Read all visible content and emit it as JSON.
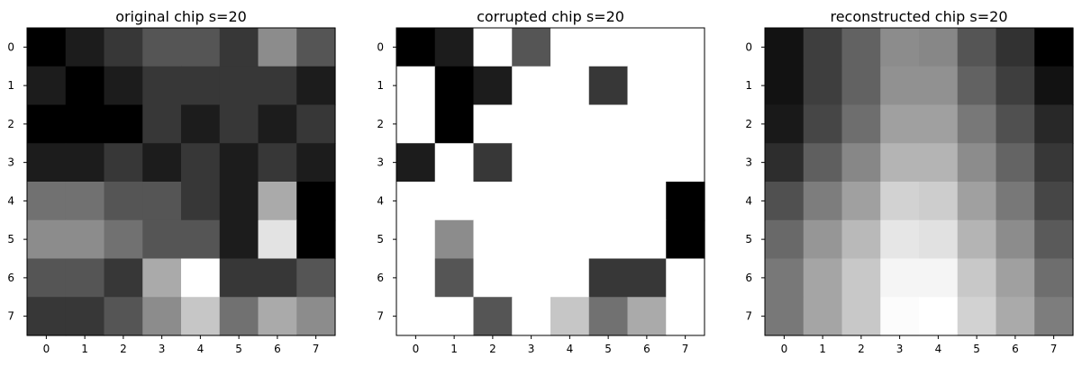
{
  "chart_data": [
    {
      "type": "heatmap",
      "title": "original chip s=20",
      "colormap": "gray",
      "vmin": 0,
      "vmax": 255,
      "x_ticks": [
        "0",
        "1",
        "2",
        "3",
        "4",
        "5",
        "6",
        "7"
      ],
      "y_ticks": [
        "0",
        "1",
        "2",
        "3",
        "4",
        "5",
        "6",
        "7"
      ],
      "values": [
        [
          0,
          28,
          55,
          85,
          85,
          55,
          140,
          85
        ],
        [
          28,
          0,
          28,
          55,
          55,
          55,
          55,
          28
        ],
        [
          0,
          0,
          0,
          55,
          28,
          55,
          28,
          55
        ],
        [
          28,
          28,
          55,
          28,
          55,
          28,
          55,
          28
        ],
        [
          113,
          113,
          85,
          85,
          55,
          28,
          170,
          0
        ],
        [
          140,
          140,
          113,
          85,
          85,
          28,
          227,
          0
        ],
        [
          85,
          85,
          55,
          170,
          255,
          55,
          55,
          85
        ],
        [
          55,
          55,
          85,
          140,
          198,
          113,
          170,
          140
        ]
      ]
    },
    {
      "type": "heatmap",
      "title": "corrupted chip s=20",
      "colormap": "gray",
      "vmin": 0,
      "vmax": 255,
      "x_ticks": [
        "0",
        "1",
        "2",
        "3",
        "4",
        "5",
        "6",
        "7"
      ],
      "y_ticks": [
        "0",
        "1",
        "2",
        "3",
        "4",
        "5",
        "6",
        "7"
      ],
      "values": [
        [
          0,
          28,
          255,
          85,
          255,
          255,
          255,
          255
        ],
        [
          255,
          0,
          28,
          255,
          255,
          55,
          255,
          255
        ],
        [
          255,
          0,
          255,
          255,
          255,
          255,
          255,
          255
        ],
        [
          28,
          255,
          55,
          255,
          255,
          255,
          255,
          255
        ],
        [
          255,
          255,
          255,
          255,
          255,
          255,
          255,
          0
        ],
        [
          255,
          140,
          255,
          255,
          255,
          255,
          255,
          0
        ],
        [
          255,
          85,
          255,
          255,
          255,
          55,
          55,
          255
        ],
        [
          255,
          255,
          85,
          255,
          198,
          113,
          170,
          255
        ]
      ]
    },
    {
      "type": "heatmap",
      "title": "reconstructed chip s=20",
      "colormap": "gray",
      "vmin": 0,
      "vmax": 255,
      "x_ticks": [
        "0",
        "1",
        "2",
        "3",
        "4",
        "5",
        "6",
        "7"
      ],
      "y_ticks": [
        "0",
        "1",
        "2",
        "3",
        "4",
        "5",
        "6",
        "7"
      ],
      "values": [
        [
          18,
          62,
          98,
          140,
          135,
          85,
          50,
          0
        ],
        [
          18,
          62,
          98,
          145,
          145,
          98,
          62,
          18
        ],
        [
          25,
          70,
          110,
          160,
          160,
          120,
          80,
          40
        ],
        [
          45,
          95,
          135,
          180,
          180,
          140,
          100,
          55
        ],
        [
          80,
          125,
          160,
          210,
          205,
          160,
          120,
          70
        ],
        [
          105,
          150,
          185,
          230,
          225,
          180,
          140,
          90
        ],
        [
          120,
          165,
          200,
          245,
          245,
          200,
          160,
          110
        ],
        [
          120,
          165,
          200,
          252,
          255,
          210,
          170,
          125
        ]
      ]
    }
  ]
}
